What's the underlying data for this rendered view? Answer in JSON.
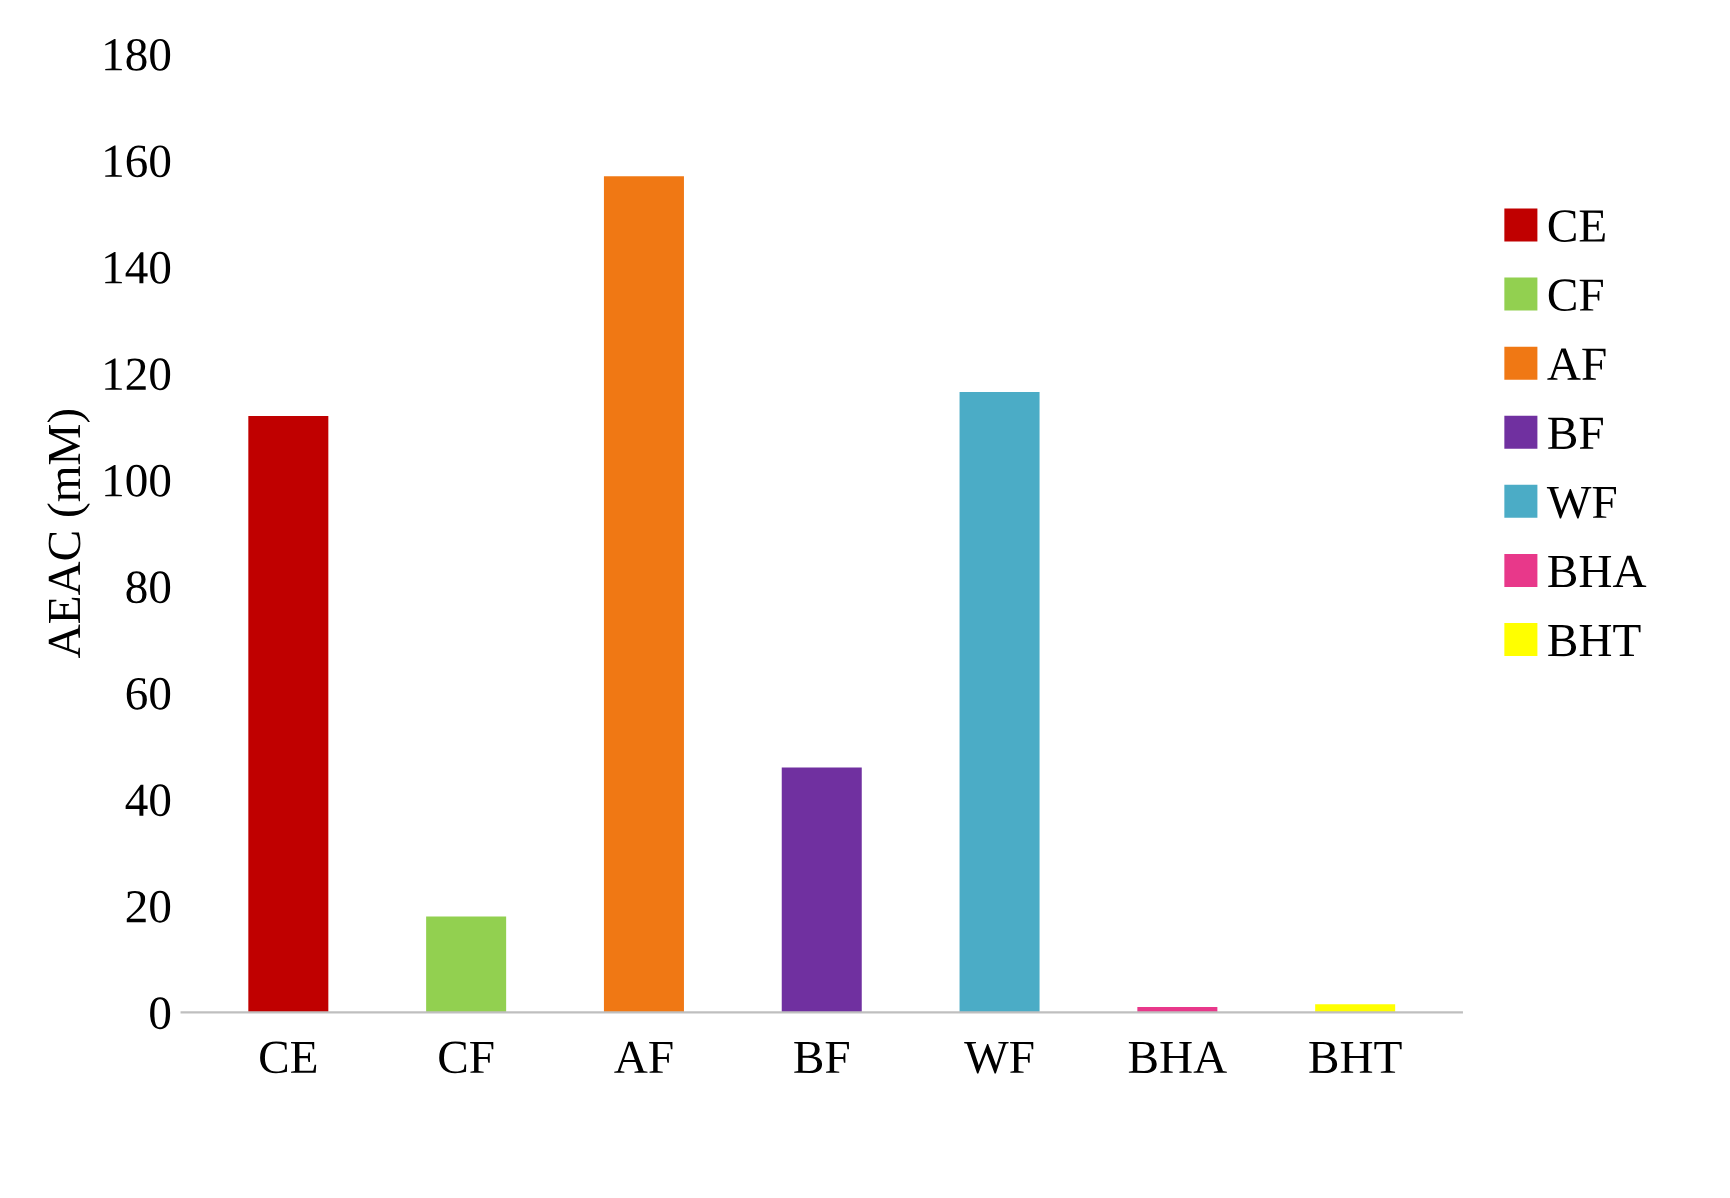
{
  "chart_data": {
    "type": "bar",
    "ylabel": "AEAC (mM)",
    "categories": [
      "CE",
      "CF",
      "AF",
      "BF",
      "WF",
      "BHA",
      "BHT"
    ],
    "series": [
      {
        "name": "CE",
        "color": "#c00000",
        "values": [
          112,
          null,
          null,
          null,
          null,
          null,
          null
        ]
      },
      {
        "name": "CF",
        "color": "#92d050",
        "values": [
          null,
          18,
          null,
          null,
          null,
          null,
          null
        ]
      },
      {
        "name": "AF",
        "color": "#f07814",
        "values": [
          null,
          null,
          157,
          null,
          null,
          null,
          null
        ]
      },
      {
        "name": "BF",
        "color": "#7030a0",
        "values": [
          null,
          null,
          null,
          46,
          null,
          null,
          null
        ]
      },
      {
        "name": "WF",
        "color": "#4bacc6",
        "values": [
          null,
          null,
          null,
          null,
          116.5,
          null,
          null
        ]
      },
      {
        "name": "BHA",
        "color": "#e8388a",
        "values": [
          null,
          null,
          null,
          null,
          null,
          1,
          null
        ]
      },
      {
        "name": "BHT",
        "color": "#ffff00",
        "values": [
          null,
          null,
          null,
          null,
          null,
          null,
          1.5
        ]
      }
    ],
    "ylim": [
      0,
      180
    ],
    "yticks": [
      0,
      20,
      40,
      60,
      80,
      100,
      120,
      140,
      160,
      180
    ],
    "grid": false,
    "legend": "right"
  }
}
